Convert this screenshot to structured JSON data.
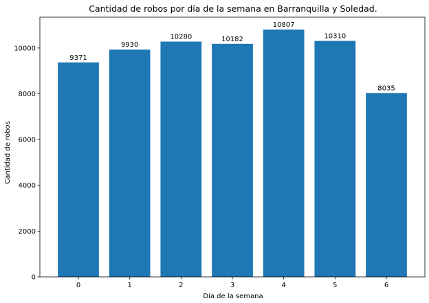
{
  "chart_data": {
    "type": "bar",
    "title": "Cantidad de robos por día de la semana en Barranquilla y Soledad.",
    "xlabel": "Día de la semana",
    "ylabel": "Cantidad de robos",
    "categories": [
      "0",
      "1",
      "2",
      "3",
      "4",
      "5",
      "6"
    ],
    "values": [
      9371,
      9930,
      10280,
      10182,
      10807,
      10310,
      8035
    ],
    "data_labels": [
      "9371",
      "9930",
      "10280",
      "10182",
      "10807",
      "10310",
      "8035"
    ],
    "ylim": [
      0,
      11347
    ],
    "yticks": [
      0,
      2000,
      4000,
      6000,
      8000,
      10000
    ],
    "ytick_labels": [
      "0",
      "2000",
      "4000",
      "6000",
      "8000",
      "10000"
    ],
    "bar_color": "#1f77b4",
    "grid": false,
    "legend": "none"
  }
}
